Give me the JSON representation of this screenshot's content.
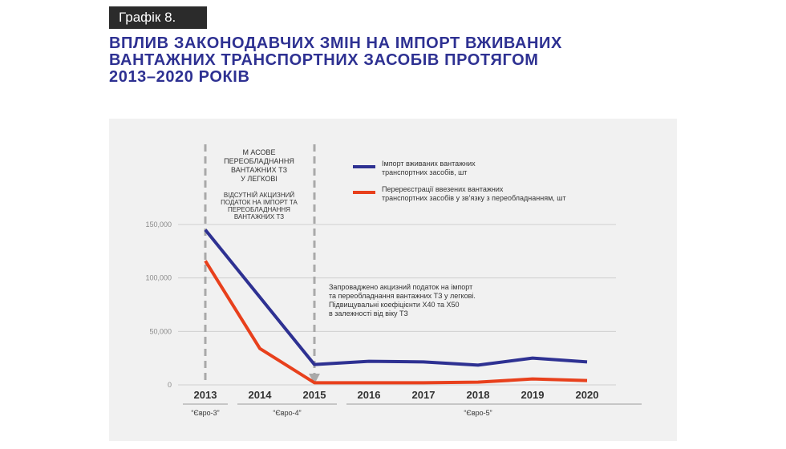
{
  "header": {
    "badge": "Графік 8.",
    "title": "ВПЛИВ ЗАКОНОДАВЧИХ ЗМІН НА ІМПОРТ ВЖИВАНИХ\nВАНТАЖНИХ ТРАНСПОРТНИХ ЗАСОБІВ ПРОТЯГОМ\n2013–2020 РОКІВ"
  },
  "annotations": {
    "period_title": [
      "М АСОВЕ",
      "ПЕРЕОБЛАДНАННЯ",
      "ВАНТАЖНИХ ТЗ",
      "У ЛЕГКОВІ"
    ],
    "period_sub": [
      "ВІДСУТНІЙ АКЦИЗНИЙ",
      "ПОДАТОК НА ІМПОРТ ТА",
      "ПЕРЕОБЛАДНАННЯ",
      "ВАНТАЖНИХ ТЗ"
    ],
    "note": [
      "Запроваджено акцизний податок на імпорт",
      "та переобладнання вантажних  ТЗ у легкові.",
      "Підвищувальні коефіцієнти Х40 та Х50",
      "в залежності від віку ТЗ"
    ]
  },
  "euro_labels": [
    {
      "label": "“Євро-3”",
      "from": "2013",
      "to": "2013"
    },
    {
      "label": "“Євро-4”",
      "from": "2014",
      "to": "2015"
    },
    {
      "label": "“Євро-5”",
      "from": "2016",
      "to": "2020"
    }
  ],
  "chart_data": {
    "type": "line",
    "x": [
      "2013",
      "2014",
      "2015",
      "2016",
      "2017",
      "2018",
      "2019",
      "2020"
    ],
    "yticks": [
      "0",
      "50,000",
      "100,000",
      "150,000"
    ],
    "ylim": [
      0,
      150000
    ],
    "grid": true,
    "legend_position": "top-right",
    "series": [
      {
        "name": "Імпорт вживаних вантажних транспортних засобів, шт",
        "legend_lines": [
          "Імпорт вживаних вантажних",
          "транспортних засобів, шт"
        ],
        "color": "#2e3192",
        "values": [
          145000,
          82000,
          19000,
          22000,
          21500,
          18500,
          25000,
          21500
        ]
      },
      {
        "name": "Перереєстрації ввезених вантажних транспортних засобів у зв'язку з переобладнанням, шт",
        "legend_lines": [
          "Перереєстрації ввезених вантажних",
          "транспортних засобів у зв’язку з переобладнанням, шт"
        ],
        "color": "#e8401c",
        "values": [
          116000,
          34000,
          2000,
          2000,
          2000,
          2500,
          5500,
          4000
        ]
      }
    ]
  }
}
